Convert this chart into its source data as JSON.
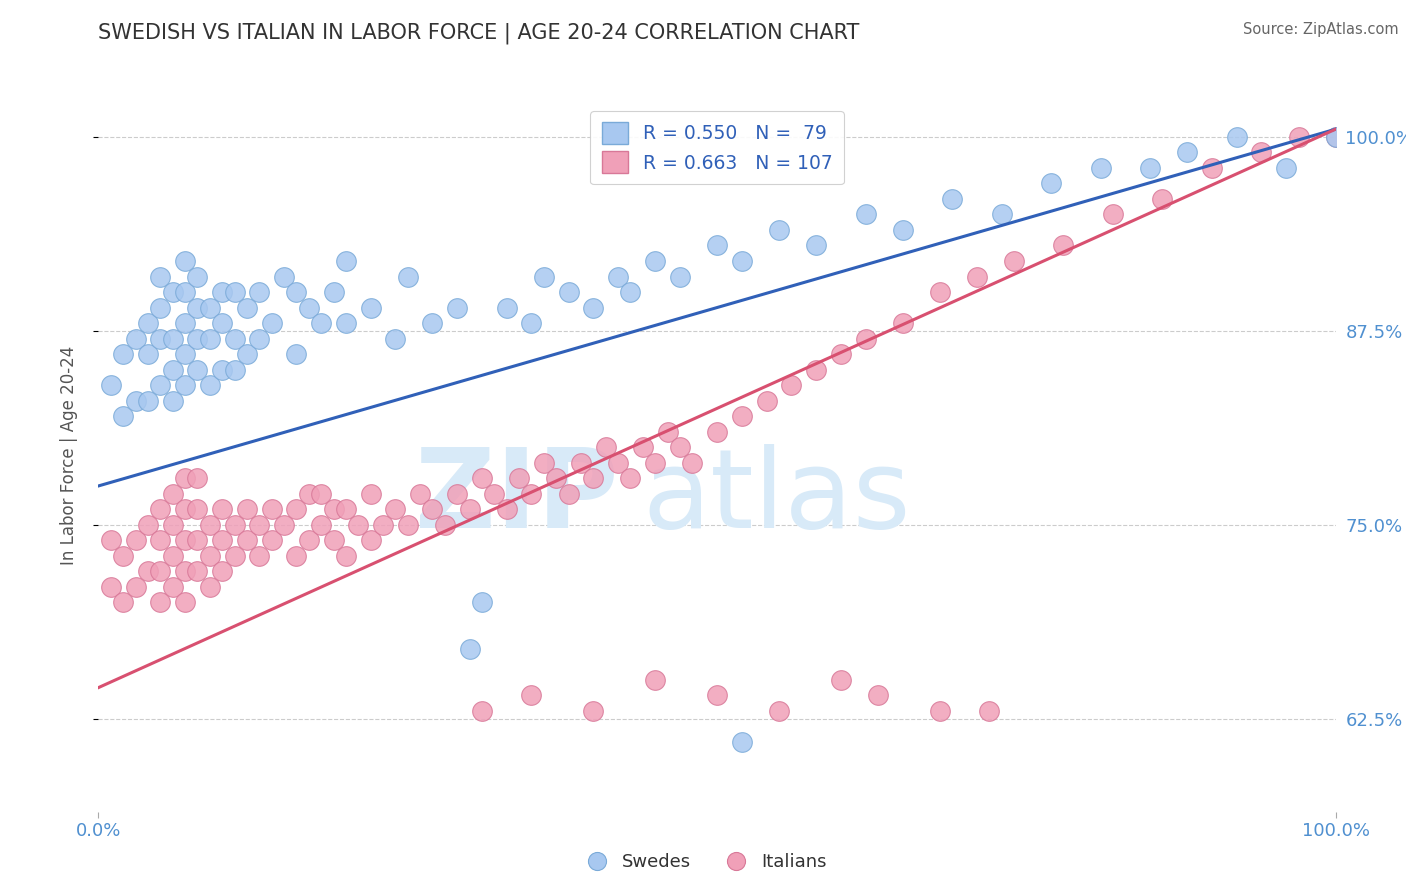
{
  "title": "SWEDISH VS ITALIAN IN LABOR FORCE | AGE 20-24 CORRELATION CHART",
  "source": "Source: ZipAtlas.com",
  "ylabel": "In Labor Force | Age 20-24",
  "xlim": [
    0.0,
    1.0
  ],
  "ylim": [
    0.565,
    1.025
  ],
  "yticks": [
    0.625,
    0.75,
    0.875,
    1.0
  ],
  "ytick_labels": [
    "62.5%",
    "75.0%",
    "87.5%",
    "100.0%"
  ],
  "xtick_labels": [
    "0.0%",
    "100.0%"
  ],
  "blue_line": [
    0.0,
    0.775,
    1.0,
    1.005
  ],
  "pink_line": [
    0.0,
    0.645,
    1.0,
    1.005
  ],
  "blue_dot_color": "#A8C8F0",
  "blue_dot_edge": "#7AAAD8",
  "pink_dot_color": "#F0A0B8",
  "pink_dot_edge": "#D87898",
  "blue_line_color": "#3060B8",
  "pink_line_color": "#D85070",
  "grid_color": "#CCCCCC",
  "bg_color": "#FFFFFF",
  "watermark_color": "#D8EAF8",
  "title_color": "#333333",
  "source_color": "#666666",
  "ylabel_color": "#555555",
  "tick_color": "#5090D0",
  "legend_label_color": "#3060B8",
  "swede_x": [
    0.01,
    0.02,
    0.02,
    0.03,
    0.03,
    0.04,
    0.04,
    0.04,
    0.05,
    0.05,
    0.05,
    0.05,
    0.06,
    0.06,
    0.06,
    0.06,
    0.07,
    0.07,
    0.07,
    0.07,
    0.07,
    0.08,
    0.08,
    0.08,
    0.08,
    0.09,
    0.09,
    0.09,
    0.1,
    0.1,
    0.1,
    0.11,
    0.11,
    0.11,
    0.12,
    0.12,
    0.13,
    0.13,
    0.14,
    0.15,
    0.16,
    0.16,
    0.17,
    0.18,
    0.19,
    0.2,
    0.2,
    0.22,
    0.24,
    0.25,
    0.27,
    0.29,
    0.3,
    0.31,
    0.33,
    0.35,
    0.36,
    0.38,
    0.4,
    0.42,
    0.43,
    0.45,
    0.47,
    0.5,
    0.52,
    0.55,
    0.58,
    0.62,
    0.65,
    0.69,
    0.73,
    0.77,
    0.81,
    0.85,
    0.88,
    0.92,
    0.96,
    1.0,
    0.52
  ],
  "swede_y": [
    0.84,
    0.82,
    0.86,
    0.83,
    0.87,
    0.83,
    0.86,
    0.88,
    0.84,
    0.87,
    0.89,
    0.91,
    0.83,
    0.85,
    0.87,
    0.9,
    0.84,
    0.86,
    0.88,
    0.9,
    0.92,
    0.85,
    0.87,
    0.89,
    0.91,
    0.84,
    0.87,
    0.89,
    0.85,
    0.88,
    0.9,
    0.85,
    0.87,
    0.9,
    0.86,
    0.89,
    0.87,
    0.9,
    0.88,
    0.91,
    0.86,
    0.9,
    0.89,
    0.88,
    0.9,
    0.88,
    0.92,
    0.89,
    0.87,
    0.91,
    0.88,
    0.89,
    0.67,
    0.7,
    0.89,
    0.88,
    0.91,
    0.9,
    0.89,
    0.91,
    0.9,
    0.92,
    0.91,
    0.93,
    0.92,
    0.94,
    0.93,
    0.95,
    0.94,
    0.96,
    0.95,
    0.97,
    0.98,
    0.98,
    0.99,
    1.0,
    0.98,
    1.0,
    0.61
  ],
  "italian_x": [
    0.01,
    0.01,
    0.02,
    0.02,
    0.03,
    0.03,
    0.04,
    0.04,
    0.05,
    0.05,
    0.05,
    0.05,
    0.06,
    0.06,
    0.06,
    0.06,
    0.07,
    0.07,
    0.07,
    0.07,
    0.07,
    0.08,
    0.08,
    0.08,
    0.08,
    0.09,
    0.09,
    0.09,
    0.1,
    0.1,
    0.1,
    0.11,
    0.11,
    0.12,
    0.12,
    0.13,
    0.13,
    0.14,
    0.14,
    0.15,
    0.16,
    0.16,
    0.17,
    0.17,
    0.18,
    0.18,
    0.19,
    0.19,
    0.2,
    0.2,
    0.21,
    0.22,
    0.22,
    0.23,
    0.24,
    0.25,
    0.26,
    0.27,
    0.28,
    0.29,
    0.3,
    0.31,
    0.32,
    0.33,
    0.34,
    0.35,
    0.36,
    0.37,
    0.38,
    0.39,
    0.4,
    0.41,
    0.42,
    0.43,
    0.44,
    0.45,
    0.46,
    0.47,
    0.48,
    0.5,
    0.52,
    0.54,
    0.56,
    0.58,
    0.6,
    0.62,
    0.65,
    0.68,
    0.71,
    0.74,
    0.78,
    0.82,
    0.86,
    0.9,
    0.94,
    0.97,
    1.0,
    0.31,
    0.35,
    0.4,
    0.45,
    0.5,
    0.55,
    0.6,
    0.63,
    0.68,
    0.72
  ],
  "italian_y": [
    0.71,
    0.74,
    0.7,
    0.73,
    0.71,
    0.74,
    0.72,
    0.75,
    0.7,
    0.72,
    0.74,
    0.76,
    0.71,
    0.73,
    0.75,
    0.77,
    0.7,
    0.72,
    0.74,
    0.76,
    0.78,
    0.72,
    0.74,
    0.76,
    0.78,
    0.71,
    0.73,
    0.75,
    0.72,
    0.74,
    0.76,
    0.73,
    0.75,
    0.74,
    0.76,
    0.73,
    0.75,
    0.74,
    0.76,
    0.75,
    0.73,
    0.76,
    0.74,
    0.77,
    0.75,
    0.77,
    0.74,
    0.76,
    0.73,
    0.76,
    0.75,
    0.74,
    0.77,
    0.75,
    0.76,
    0.75,
    0.77,
    0.76,
    0.75,
    0.77,
    0.76,
    0.78,
    0.77,
    0.76,
    0.78,
    0.77,
    0.79,
    0.78,
    0.77,
    0.79,
    0.78,
    0.8,
    0.79,
    0.78,
    0.8,
    0.79,
    0.81,
    0.8,
    0.79,
    0.81,
    0.82,
    0.83,
    0.84,
    0.85,
    0.86,
    0.87,
    0.88,
    0.9,
    0.91,
    0.92,
    0.93,
    0.95,
    0.96,
    0.98,
    0.99,
    1.0,
    1.0,
    0.63,
    0.64,
    0.63,
    0.65,
    0.64,
    0.63,
    0.65,
    0.64,
    0.63,
    0.63
  ]
}
